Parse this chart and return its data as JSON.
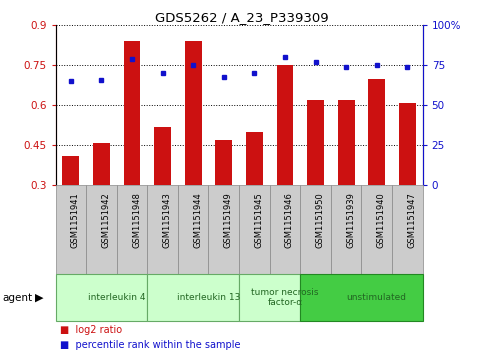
{
  "title": "GDS5262 / A_23_P339309",
  "samples": [
    "GSM1151941",
    "GSM1151942",
    "GSM1151948",
    "GSM1151943",
    "GSM1151944",
    "GSM1151949",
    "GSM1151945",
    "GSM1151946",
    "GSM1151950",
    "GSM1151939",
    "GSM1151940",
    "GSM1151947"
  ],
  "log2_ratio": [
    0.41,
    0.46,
    0.84,
    0.52,
    0.84,
    0.47,
    0.5,
    0.75,
    0.62,
    0.62,
    0.7,
    0.61
  ],
  "percentile_rank": [
    65,
    66,
    79,
    70,
    75,
    68,
    70,
    80,
    77,
    74,
    75,
    74
  ],
  "bar_color": "#cc1111",
  "dot_color": "#1111cc",
  "ylim_left": [
    0.3,
    0.9
  ],
  "ylim_right": [
    0,
    100
  ],
  "yticks_left": [
    0.3,
    0.45,
    0.6,
    0.75,
    0.9
  ],
  "yticks_right": [
    0,
    25,
    50,
    75,
    100
  ],
  "ytick_labels_right": [
    "0",
    "25",
    "50",
    "75",
    "100%"
  ],
  "groups": [
    {
      "label": "interleukin 4",
      "start": 0,
      "end": 3,
      "color": "#ccffcc",
      "border": "#66aa66"
    },
    {
      "label": "interleukin 13",
      "start": 3,
      "end": 6,
      "color": "#ccffcc",
      "border": "#66aa66"
    },
    {
      "label": "tumor necrosis\nfactor-α",
      "start": 6,
      "end": 8,
      "color": "#ccffcc",
      "border": "#66aa66"
    },
    {
      "label": "unstimulated",
      "start": 8,
      "end": 12,
      "color": "#44cc44",
      "border": "#228822"
    }
  ],
  "agent_label": "agent",
  "legend_bar_label": "log2 ratio",
  "legend_dot_label": "percentile rank within the sample",
  "tick_area_color": "#cccccc",
  "sample_box_edge": "#888888"
}
